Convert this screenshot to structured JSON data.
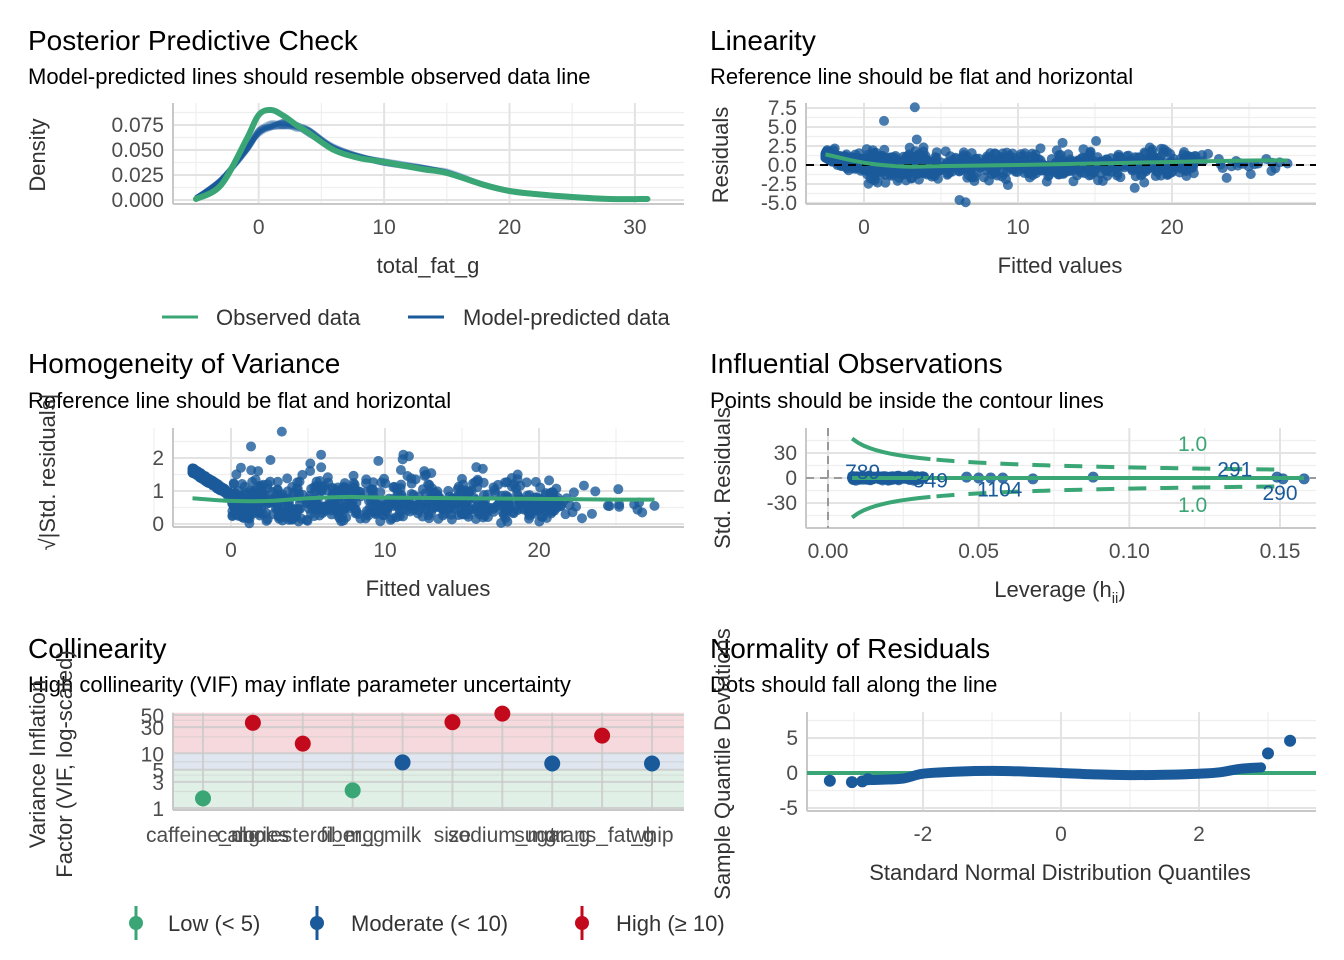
{
  "colors": {
    "green": "#3aa675",
    "blue": "#1a5a9a",
    "red": "#c30a1c",
    "band_red": "#f5d9dc",
    "band_blue": "#dfe6f0",
    "band_green": "#e0f0e7"
  },
  "chart_data": [
    {
      "id": "ppc",
      "type": "line",
      "title": "Posterior Predictive Check",
      "subtitle": "Model-predicted lines should resemble observed data line",
      "xlabel": "total_fat_g",
      "ylabel": "Density",
      "xlim": [
        -5,
        32
      ],
      "ylim": [
        0,
        0.09
      ],
      "xticks": [
        0,
        10,
        20,
        30
      ],
      "yticks": [
        "0.000",
        "0.025",
        "0.050",
        "0.075"
      ],
      "ytick_values": [
        0,
        0.025,
        0.05,
        0.075
      ],
      "legend": {
        "position": "bottom",
        "entries": [
          "Observed data",
          "Model-predicted data"
        ]
      },
      "series": [
        {
          "name": "Model-predicted data",
          "x": [
            -5,
            -3,
            -1,
            0,
            1,
            2,
            3,
            4,
            6,
            8,
            10,
            13,
            15,
            18,
            20,
            22,
            25,
            28,
            31
          ],
          "y": [
            0.002,
            0.02,
            0.05,
            0.068,
            0.075,
            0.076,
            0.073,
            0.068,
            0.052,
            0.043,
            0.038,
            0.032,
            0.028,
            0.015,
            0.009,
            0.006,
            0.003,
            0.001,
            0.001
          ]
        },
        {
          "name": "Observed data",
          "x": [
            -5,
            -3,
            -1,
            0,
            1,
            2,
            3,
            4,
            6,
            8,
            10,
            13,
            15,
            18,
            20,
            22,
            25,
            28,
            31
          ],
          "y": [
            0.001,
            0.015,
            0.06,
            0.085,
            0.09,
            0.084,
            0.075,
            0.067,
            0.05,
            0.042,
            0.038,
            0.031,
            0.027,
            0.015,
            0.009,
            0.006,
            0.003,
            0.001,
            0.001
          ]
        }
      ]
    },
    {
      "id": "linearity",
      "type": "scatter",
      "title": "Linearity",
      "subtitle": "Reference line should be flat and horizontal",
      "xlabel": "Fitted values",
      "ylabel": "Residuals",
      "xlim": [
        -3.8,
        28.5
      ],
      "ylim": [
        -5.0,
        8.3
      ],
      "xticks": [
        0,
        10,
        20
      ],
      "yticks": [
        "-5.0",
        "-2.5",
        "0.0",
        "2.5",
        "5.0",
        "7.5"
      ],
      "ytick_values": [
        -5,
        -2.5,
        0,
        2.5,
        5,
        7.5
      ],
      "reference_line": 0,
      "smooth": {
        "x": [
          -2.5,
          0,
          2.5,
          5,
          10,
          15,
          20,
          25,
          27.5
        ],
        "y": [
          1.4,
          0.3,
          -0.2,
          -0.15,
          0.0,
          0.2,
          0.4,
          0.6,
          0.6
        ]
      },
      "outliers": [
        {
          "x": 3.3,
          "y": 7.6
        },
        {
          "x": 1.3,
          "y": 5.8
        },
        {
          "x": 6.2,
          "y": -4.6
        },
        {
          "x": 6.6,
          "y": -4.9
        },
        {
          "x": 26.5,
          "y": 0.3
        },
        {
          "x": 27.5,
          "y": 0.2
        }
      ]
    },
    {
      "id": "homogeneity",
      "type": "scatter",
      "title": "Homogeneity of Variance",
      "subtitle": "Reference line should be flat and horizontal",
      "xlabel": "Fitted values",
      "ylabel": "√|Std. residuals|",
      "xlim": [
        -3.8,
        28.5
      ],
      "ylim": [
        0,
        2.95
      ],
      "xticks": [
        0,
        10,
        20
      ],
      "yticks": [
        "0",
        "1",
        "2"
      ],
      "ytick_values": [
        0,
        1,
        2
      ],
      "smooth": {
        "x": [
          -2.5,
          0,
          2.5,
          5,
          7.5,
          10,
          15,
          20,
          25,
          27.5
        ],
        "y": [
          0.78,
          0.7,
          0.7,
          0.78,
          0.82,
          0.8,
          0.78,
          0.76,
          0.74,
          0.74
        ]
      },
      "outliers": [
        {
          "x": 3.3,
          "y": 2.8
        },
        {
          "x": 1.3,
          "y": 2.35
        },
        {
          "x": 26.5,
          "y": 0.65
        },
        {
          "x": 27.5,
          "y": 0.55
        },
        {
          "x": 26.7,
          "y": 0.35
        }
      ]
    },
    {
      "id": "influential",
      "type": "scatter",
      "title": "Influential Observations",
      "subtitle": "Points should be inside the contour lines",
      "xlabel": "Leverage (h",
      "xlabel_sub": "ii",
      "xlabel_end": ")",
      "ylabel": "Std. Residuals",
      "xlim": [
        -0.004,
        0.166
      ],
      "ylim": [
        -55,
        55
      ],
      "xticks": [
        "0.00",
        "0.05",
        "0.10",
        "0.15"
      ],
      "xtick_values": [
        0,
        0.05,
        0.1,
        0.15
      ],
      "yticks": [
        "-30",
        "0",
        "30"
      ],
      "ytick_values": [
        -30,
        0,
        30
      ],
      "contour_label": "1.0",
      "point_labels": [
        {
          "label": "789",
          "x": 0.0115,
          "y": 7
        },
        {
          "label": "349",
          "x": 0.034,
          "y": -3
        },
        {
          "label": "1104",
          "x": 0.057,
          "y": -14
        },
        {
          "label": "291",
          "x": 0.135,
          "y": 10
        },
        {
          "label": "290",
          "x": 0.15,
          "y": -18
        }
      ],
      "points": [
        {
          "x": 0.023,
          "y": 2
        },
        {
          "x": 0.046,
          "y": 1
        },
        {
          "x": 0.05,
          "y": 0
        },
        {
          "x": 0.054,
          "y": 0
        },
        {
          "x": 0.058,
          "y": 0
        },
        {
          "x": 0.068,
          "y": -1
        },
        {
          "x": 0.088,
          "y": 1
        },
        {
          "x": 0.149,
          "y": 1
        },
        {
          "x": 0.151,
          "y": -1
        },
        {
          "x": 0.158,
          "y": -1
        }
      ]
    },
    {
      "id": "collinearity",
      "type": "scatter",
      "title": "Collinearity",
      "subtitle": "High collinearity (VIF) may inflate parameter uncertainty",
      "xlabel": "",
      "ylabel": "Variance Inflation\nFactor (VIF, log-scaled)",
      "ylabel_lines": [
        "Variance Inflation",
        "Factor (VIF, log-scaled)"
      ],
      "yscale": "log",
      "ylim": [
        1,
        55
      ],
      "yticks": [
        "1",
        "3",
        "5",
        "10",
        "30",
        "50"
      ],
      "ytick_values": [
        1,
        3,
        5,
        10,
        30,
        50
      ],
      "categories": [
        "caffeine_mg",
        "calories",
        "cholesterol_mg",
        "fiber_g",
        "milk",
        "size",
        "sodium_mg",
        "sugar_g",
        "trans_fat_g",
        "whip"
      ],
      "values": [
        1.5,
        36,
        15,
        2.1,
        6.8,
        37,
        53,
        6.5,
        21,
        6.5
      ],
      "levels": [
        "low",
        "high",
        "high",
        "low",
        "moderate",
        "high",
        "high",
        "moderate",
        "high",
        "moderate"
      ],
      "legend": {
        "position": "bottom",
        "entries": [
          {
            "key": "low",
            "label": "Low (< 5)"
          },
          {
            "key": "moderate",
            "label": "Moderate (< 10)"
          },
          {
            "key": "high",
            "label": "High (≥ 10)"
          }
        ]
      }
    },
    {
      "id": "normality",
      "type": "scatter",
      "title": "Normality of Residuals",
      "subtitle": "Dots should fall along the line",
      "xlabel": "Standard Normal Distribution Quantiles",
      "ylabel": "Sample Quantile Deviations",
      "xlim": [
        -3.75,
        3.6
      ],
      "ylim": [
        -5.2,
        8.5
      ],
      "xticks": [
        "-2",
        "0",
        "2"
      ],
      "xtick_values": [
        -2,
        0,
        2
      ],
      "yticks": [
        "-5",
        "0",
        "5"
      ],
      "ytick_values": [
        -5,
        0,
        5
      ],
      "reference_line": 0,
      "curve": {
        "x": [
          -2.75,
          -2.3,
          -2.0,
          -1.5,
          -1.0,
          -0.5,
          0,
          0.5,
          1.0,
          1.5,
          2.0,
          2.3,
          2.6,
          2.9
        ],
        "y": [
          -1.0,
          -0.8,
          -0.1,
          0.2,
          0.3,
          0.2,
          0.0,
          -0.2,
          -0.3,
          -0.25,
          -0.1,
          0.1,
          0.6,
          0.8
        ]
      },
      "tail_points": [
        {
          "x": -3.35,
          "y": -1.1
        },
        {
          "x": -3.03,
          "y": -1.3
        },
        {
          "x": -2.88,
          "y": -1.2
        },
        {
          "x": -2.8,
          "y": -0.9
        },
        {
          "x": 3.0,
          "y": 2.8
        },
        {
          "x": 3.32,
          "y": 4.6
        }
      ]
    }
  ]
}
